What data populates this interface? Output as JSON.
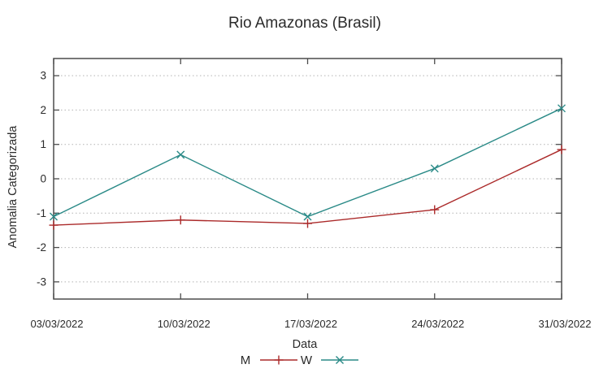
{
  "chart_data": {
    "type": "line",
    "title": "Rio Amazonas (Brasil)",
    "xlabel": "Data",
    "ylabel": "Anomalia Categorizada",
    "categories": [
      "03/03/2022",
      "10/03/2022",
      "17/03/2022",
      "24/03/2022",
      "31/03/2022"
    ],
    "series": [
      {
        "name": "M",
        "color": "#ab2a2a",
        "marker": "plus",
        "values": [
          -1.35,
          -1.2,
          -1.3,
          -0.9,
          0.85
        ]
      },
      {
        "name": "W",
        "color": "#2a8a87",
        "marker": "cross",
        "values": [
          -1.1,
          0.7,
          -1.1,
          0.3,
          2.05
        ]
      }
    ],
    "ylim": [
      -3.5,
      3.5
    ],
    "yticks": [
      -3,
      -2,
      -1,
      0,
      1,
      2,
      3
    ],
    "grid": "horizontal-dotted",
    "legend_position": "bottom-center",
    "axis_color": "#4c4c4c",
    "grid_color": "#b3b3b3",
    "text_color": "#2b2b2b"
  }
}
